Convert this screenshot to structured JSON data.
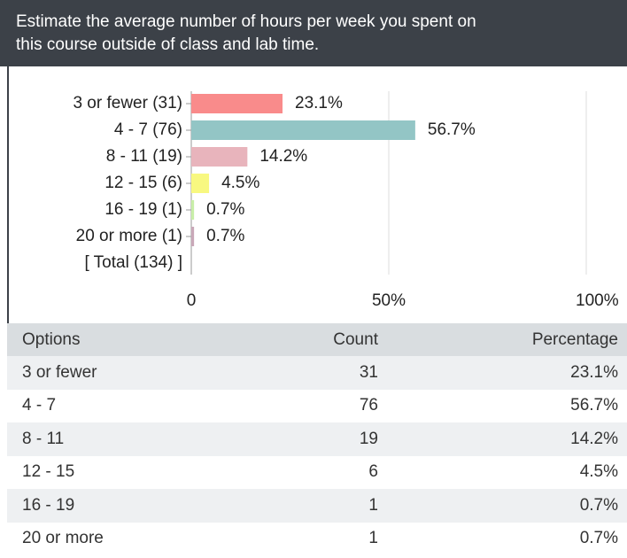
{
  "header": {
    "title_lines": [
      "Estimate the average number of hours per week you spent on",
      "this course outside of class and lab time."
    ]
  },
  "chart_data": {
    "type": "bar",
    "orientation": "horizontal",
    "categories": [
      "3 or fewer (31)",
      "4 - 7 (76)",
      "8 - 11 (19)",
      "12 - 15 (6)",
      "16 - 19 (1)",
      "20 or more (1)"
    ],
    "values": [
      23.1,
      56.7,
      14.2,
      4.5,
      0.7,
      0.7
    ],
    "value_labels": [
      "23.1%",
      "56.7%",
      "14.2%",
      "4.5%",
      "0.7%",
      "0.7%"
    ],
    "colors": [
      "#f98b8b",
      "#93c5c5",
      "#e8b4bc",
      "#f8f880",
      "#c8eea8",
      "#c9a8b8"
    ],
    "total_label": "[ Total (134) ]",
    "xlim": [
      0,
      100
    ],
    "xticks": [
      0,
      {
        "value": 50,
        "label": "50%"
      },
      {
        "value": 100,
        "label": "100%"
      }
    ],
    "grid": true
  },
  "table": {
    "columns": [
      "Options",
      "Count",
      "Percentage"
    ],
    "rows": [
      [
        "3 or fewer",
        "31",
        "23.1%"
      ],
      [
        "4 - 7",
        "76",
        "56.7%"
      ],
      [
        "8 - 11",
        "19",
        "14.2%"
      ],
      [
        "12 - 15",
        "6",
        "4.5%"
      ],
      [
        "16 - 19",
        "1",
        "0.7%"
      ],
      [
        "20 or more",
        "1",
        "0.7%"
      ]
    ]
  }
}
